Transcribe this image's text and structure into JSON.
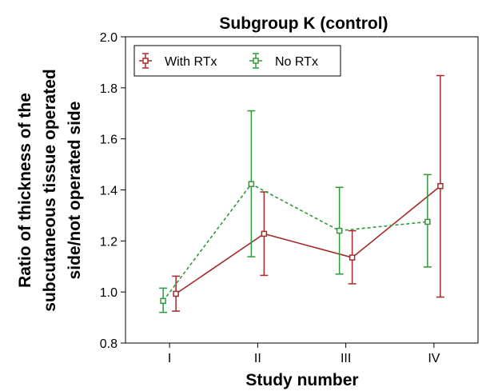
{
  "chart_data": {
    "type": "line",
    "title": "Subgroup K (control)",
    "xlabel": "Study number",
    "ylabel": [
      "Ratio of thickness of the",
      "subcutaneous tissue operated",
      "side/not operated side"
    ],
    "categories": [
      "I",
      "II",
      "III",
      "IV"
    ],
    "ylim": [
      0.8,
      2.0
    ],
    "yticks": [
      "0.8",
      "1.0",
      "1.2",
      "1.4",
      "1.6",
      "1.8",
      "2.0"
    ],
    "grid": false,
    "legend_position": "top-left",
    "series": [
      {
        "name": "With RTx",
        "color": "#a52a2a",
        "line_style": "solid",
        "values": [
          0.993,
          1.228,
          1.135,
          1.415
        ],
        "lower": [
          0.925,
          1.065,
          1.032,
          0.98
        ],
        "upper": [
          1.062,
          1.392,
          1.24,
          1.848
        ]
      },
      {
        "name": "No RTx",
        "color": "#2e9a3a",
        "line_style": "dashed",
        "values": [
          0.965,
          1.423,
          1.24,
          1.275
        ],
        "lower": [
          0.92,
          1.138,
          1.07,
          1.098
        ],
        "upper": [
          1.015,
          1.71,
          1.41,
          1.46
        ]
      }
    ]
  }
}
